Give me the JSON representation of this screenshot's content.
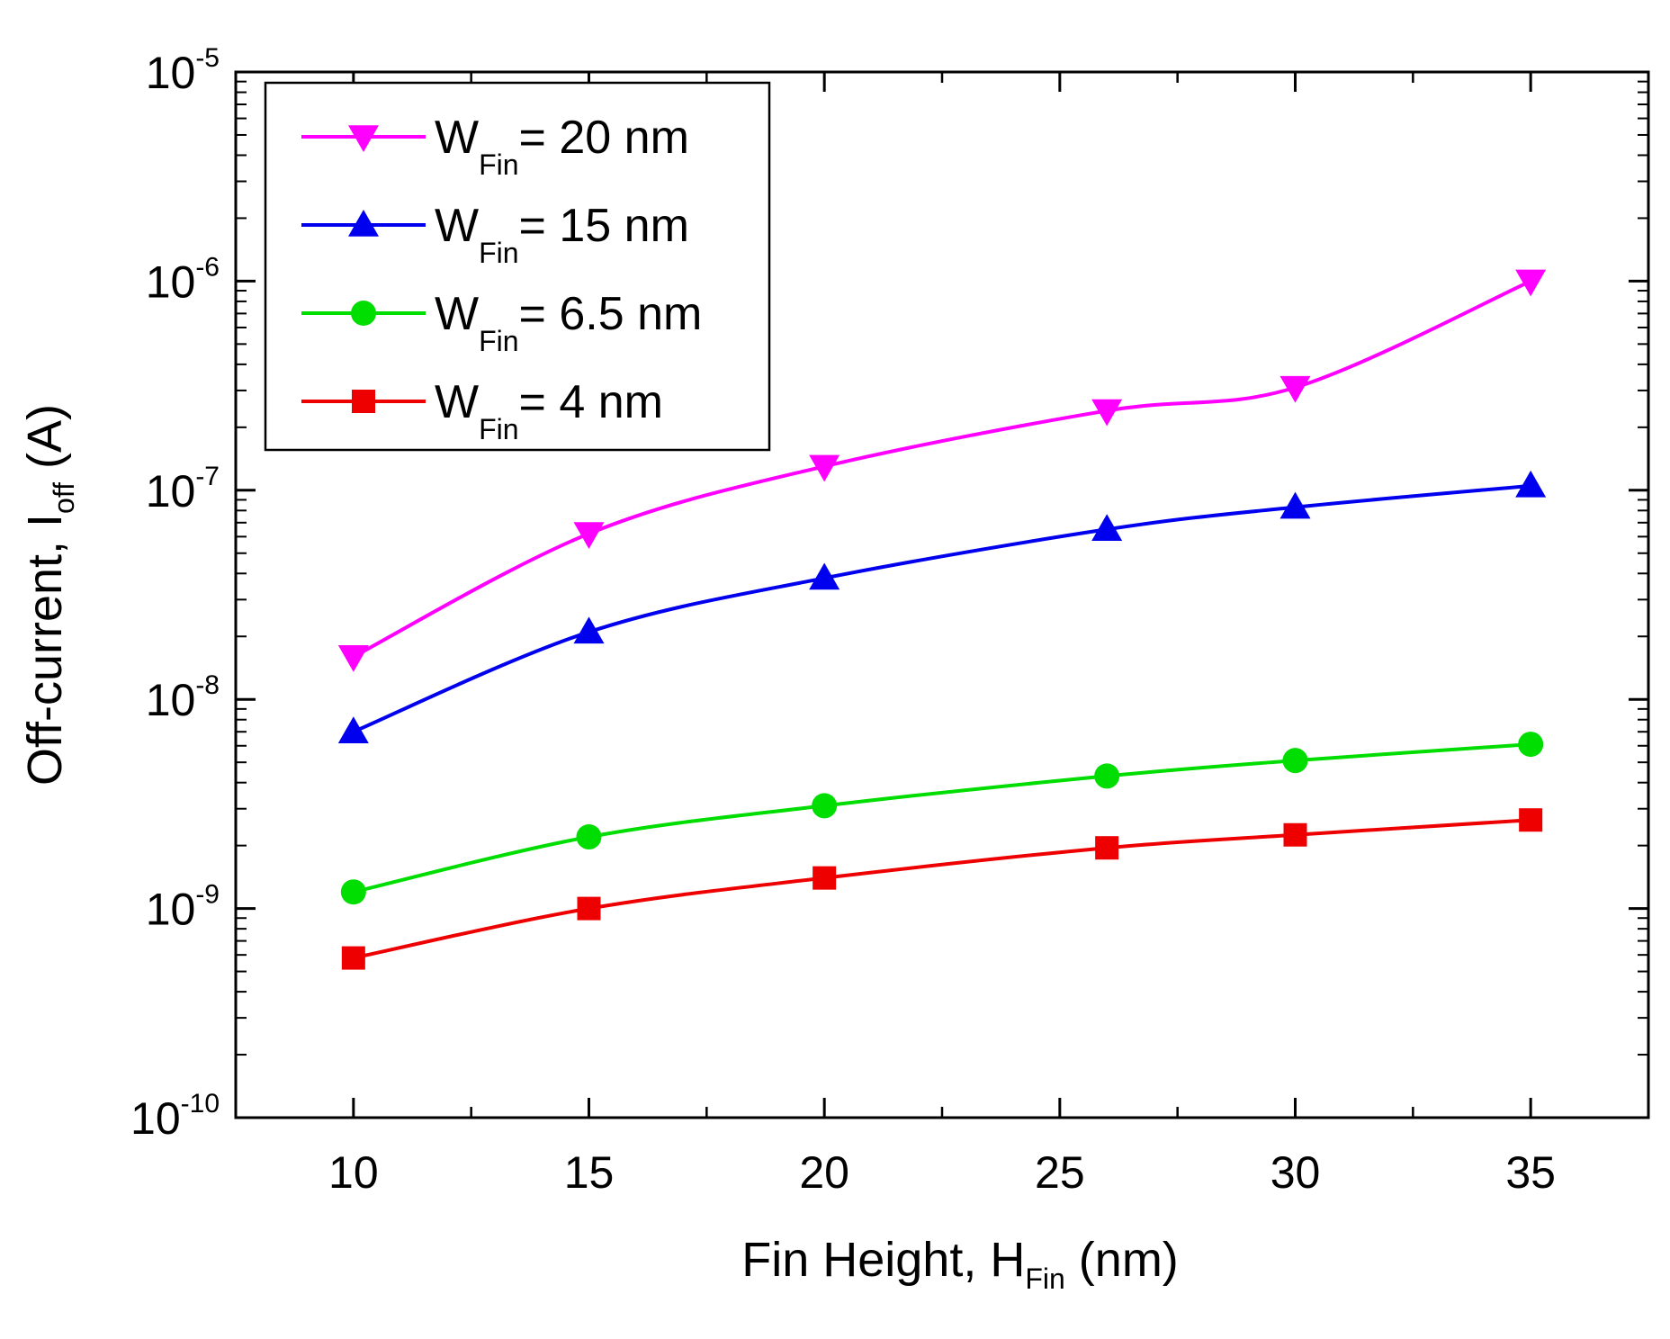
{
  "chart_data": {
    "type": "line",
    "title": "",
    "xlabel": {
      "main": "Fin Height, H",
      "sub": "Fin",
      "unit": " (nm)"
    },
    "ylabel": {
      "main": "Off-current, I",
      "sub": "off",
      "unit": " (A)"
    },
    "x": [
      10,
      15,
      20,
      25,
      30,
      35
    ],
    "x_positions": [
      10,
      15,
      20,
      26,
      30,
      35
    ],
    "xlim": [
      7.5,
      37.5
    ],
    "xticks": [
      "10",
      "15",
      "20",
      "25",
      "30",
      "35"
    ],
    "xtick_values": [
      10,
      15,
      20,
      25,
      30,
      35
    ],
    "y_scale": "log",
    "ylim": [
      1e-10,
      1e-05
    ],
    "yticks": [
      {
        "base": "10",
        "exp": "-10",
        "value": 1e-10
      },
      {
        "base": "10",
        "exp": "-9",
        "value": 1e-09
      },
      {
        "base": "10",
        "exp": "-8",
        "value": 1e-08
      },
      {
        "base": "10",
        "exp": "-7",
        "value": 1e-07
      },
      {
        "base": "10",
        "exp": "-6",
        "value": 1e-06
      },
      {
        "base": "10",
        "exp": "-5",
        "value": 1e-05
      }
    ],
    "legend_position": "top-left",
    "series": [
      {
        "name": "WFin= 20 nm",
        "label_main": "W",
        "label_sub": "Fin",
        "label_rest": "= 20 nm",
        "color": "#ff00ff",
        "marker": "triangle-down",
        "values": [
          1.6e-08,
          6.2e-08,
          1.3e-07,
          2.4e-07,
          3.1e-07,
          1e-06
        ]
      },
      {
        "name": "WFin= 15 nm",
        "label_main": "W",
        "label_sub": "Fin",
        "label_rest": "= 15 nm",
        "color": "#0000ee",
        "marker": "triangle-up",
        "values": [
          7e-09,
          2.1e-08,
          3.8e-08,
          6.5e-08,
          8.3e-08,
          1.05e-07
        ]
      },
      {
        "name": "WFin= 6.5 nm",
        "label_main": "W",
        "label_sub": "Fin",
        "label_rest": "= 6.5 nm",
        "color": "#00dd00",
        "marker": "circle",
        "values": [
          1.2e-09,
          2.2e-09,
          3.1e-09,
          4.3e-09,
          5.1e-09,
          6.1e-09
        ]
      },
      {
        "name": "WFin= 4 nm",
        "label_main": "W",
        "label_sub": "Fin",
        "label_rest": "= 4 nm",
        "color": "#ee0000",
        "marker": "square",
        "values": [
          5.8e-10,
          1e-09,
          1.4e-09,
          1.95e-09,
          2.25e-09,
          2.65e-09
        ]
      }
    ]
  }
}
